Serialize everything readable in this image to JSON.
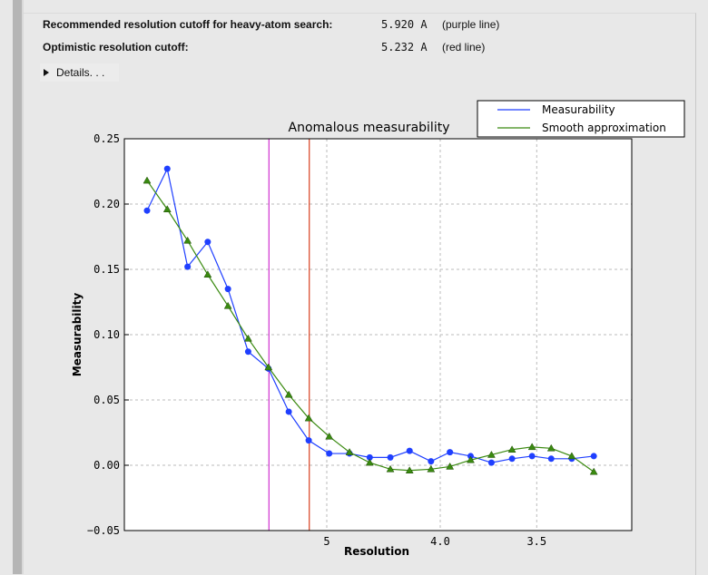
{
  "summary": {
    "recommended_label": "Recommended resolution cutoff for heavy-atom search:",
    "recommended_value": "5.920 A",
    "recommended_note": "(purple line)",
    "optimistic_label": "Optimistic resolution cutoff:",
    "optimistic_value": "5.232 A",
    "optimistic_note": "(red line)",
    "details_label": "Details. . ."
  },
  "chart_data": {
    "type": "line",
    "title": "Anomalous measurability",
    "xlabel": "Resolution",
    "ylabel": "Measurability",
    "x_scale": "1/d^2",
    "xticks": [
      {
        "value": 5,
        "label": "5"
      },
      {
        "value": 4.0,
        "label": "4.0"
      },
      {
        "value": 3.5,
        "label": "3.5"
      }
    ],
    "yticks": [
      "0.25",
      "0.20",
      "0.15",
      "0.10",
      "0.05",
      "0.00",
      "−0.05"
    ],
    "ylim": [
      -0.05,
      0.25
    ],
    "grid": true,
    "legend_position": "top-right",
    "x": [
      15.14,
      10.93,
      8.98,
      7.81,
      7.0,
      6.4,
      5.93,
      5.55,
      5.24,
      4.97,
      4.74,
      4.54,
      4.36,
      4.21,
      4.06,
      3.94,
      3.82,
      3.71,
      3.61,
      3.52,
      3.44,
      3.36,
      3.28
    ],
    "series": [
      {
        "name": "Measurability",
        "color": "#1f3fff",
        "marker": "circle",
        "values": [
          0.195,
          0.227,
          0.152,
          0.171,
          0.135,
          0.087,
          0.074,
          0.041,
          0.019,
          0.009,
          0.009,
          0.006,
          0.006,
          0.011,
          0.003,
          0.01,
          0.007,
          0.002,
          0.005,
          0.007,
          0.005,
          0.005,
          0.007
        ]
      },
      {
        "name": "Smooth approximation",
        "color": "#3a8a10",
        "marker": "triangle",
        "values": [
          0.218,
          0.196,
          0.172,
          0.146,
          0.122,
          0.097,
          0.075,
          0.054,
          0.036,
          0.022,
          0.01,
          0.002,
          -0.003,
          -0.004,
          -0.003,
          -0.001,
          0.004,
          0.008,
          0.012,
          0.014,
          0.013,
          0.007,
          -0.005
        ]
      }
    ],
    "vlines": [
      {
        "value": 5.92,
        "color": "#d030d0",
        "label": "purple line"
      },
      {
        "value": 5.232,
        "color": "#d84020",
        "label": "red line"
      }
    ]
  }
}
